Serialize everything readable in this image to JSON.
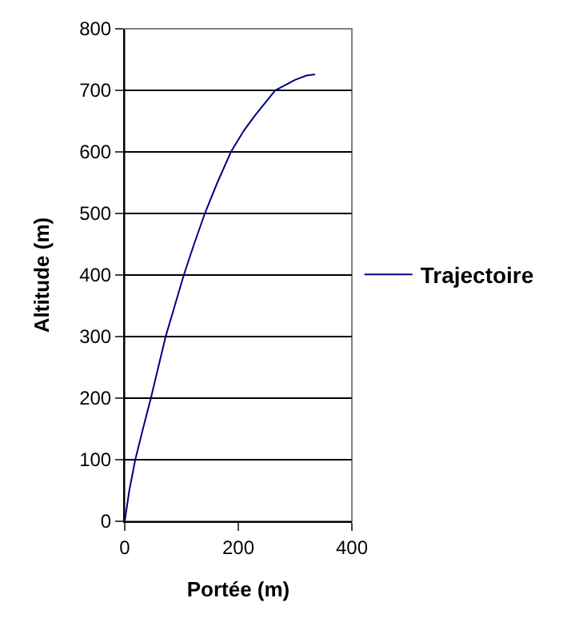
{
  "chart_data": {
    "type": "line",
    "xlabel": "Portée (m)",
    "ylabel": "Altitude (m)",
    "x": [
      0,
      8,
      18.5,
      32,
      46,
      59,
      72,
      88,
      104,
      122,
      141,
      163,
      187,
      210,
      230,
      265,
      300,
      320,
      335
    ],
    "series": [
      {
        "name": "Trajectoire",
        "color": "#000080",
        "values": [
          0,
          50,
          100,
          150,
          200,
          250,
          300,
          350,
          400,
          450,
          500,
          550,
          600,
          635,
          660,
          700,
          717,
          724,
          726
        ]
      }
    ],
    "xlim": [
      0,
      400
    ],
    "xticks": [
      0,
      200,
      400
    ],
    "ylim": [
      0,
      800
    ],
    "yticks": [
      0,
      100,
      200,
      300,
      400,
      500,
      600,
      700,
      800
    ],
    "grid": "y",
    "legend": "right",
    "marker": "none",
    "line_style": "solid"
  }
}
